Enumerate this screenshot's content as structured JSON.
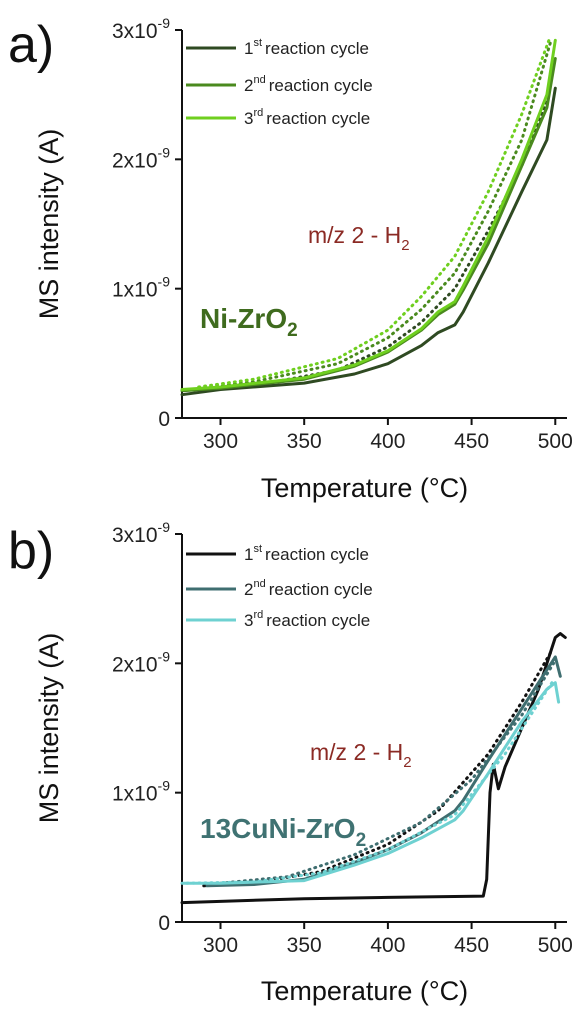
{
  "chart_data": [
    {
      "panel": "a)",
      "type": "line",
      "xlabel": "Temperature (°C)",
      "ylabel": "MS intensity (A)",
      "xlim": [
        277,
        507
      ],
      "ylim": [
        0,
        3e-09
      ],
      "xticks": [
        300,
        350,
        400,
        450,
        500
      ],
      "yticks": [
        {
          "value": 0,
          "label": "0",
          "exp": ""
        },
        {
          "value": 1e-09,
          "label": "1x10",
          "exp": "-9"
        },
        {
          "value": 2e-09,
          "label": "2x10",
          "exp": "-9"
        },
        {
          "value": 3e-09,
          "label": "3x10",
          "exp": "-9"
        }
      ],
      "annotation": {
        "text": "m/z 2 - H",
        "sub": "2"
      },
      "sample_label": {
        "text": "Ni-ZrO",
        "sub": "2",
        "color": "#3f6b1e"
      },
      "legend_position": "top-left",
      "series": [
        {
          "name": "1st reaction cycle",
          "ord": "1",
          "sup": "st",
          "rest": "reaction cycle",
          "color": "#2f4a22",
          "style": "solid",
          "x": [
            277,
            300,
            350,
            380,
            400,
            420,
            430,
            435,
            440,
            445,
            460,
            480,
            495,
            500
          ],
          "y": [
            1.8e-10,
            2.2e-10,
            2.7e-10,
            3.4e-10,
            4.2e-10,
            5.6e-10,
            6.6e-10,
            6.9e-10,
            7.2e-10,
            8.2e-10,
            1.2e-09,
            1.75e-09,
            2.15e-09,
            2.55e-09
          ]
        },
        {
          "name": "1st reaction cycle (cooling)",
          "color": "#2f4a22",
          "style": "dotted",
          "x": [
            287,
            320,
            370,
            400,
            420,
            440,
            460,
            480,
            495
          ],
          "y": [
            2.2e-10,
            2.5e-10,
            3.7e-10,
            5.5e-10,
            7.4e-10,
            1e-09,
            1.45e-09,
            1.95e-09,
            2.45e-09
          ]
        },
        {
          "name": "2nd reaction cycle",
          "ord": "2",
          "sup": "nd",
          "rest": "reaction cycle",
          "color": "#4a8a1e",
          "style": "solid",
          "x": [
            277,
            300,
            350,
            380,
            400,
            420,
            430,
            440,
            445,
            460,
            480,
            495,
            500
          ],
          "y": [
            2.1e-10,
            2.3e-10,
            3e-10,
            4e-10,
            5.1e-10,
            6.8e-10,
            8e-10,
            8.8e-10,
            9.9e-10,
            1.35e-09,
            1.95e-09,
            2.4e-09,
            2.78e-09
          ]
        },
        {
          "name": "2nd reaction cycle (cooling)",
          "color": "#4a8a1e",
          "style": "dotted",
          "x": [
            287,
            320,
            370,
            400,
            420,
            440,
            460,
            480,
            497
          ],
          "y": [
            2.3e-10,
            2.8e-10,
            4.2e-10,
            6.2e-10,
            8.4e-10,
            1.12e-09,
            1.6e-09,
            2.15e-09,
            2.9e-09
          ]
        },
        {
          "name": "3rd reaction cycle",
          "ord": "3",
          "sup": "rd",
          "rest": "reaction cycle",
          "color": "#6fcf1f",
          "style": "solid",
          "x": [
            277,
            300,
            350,
            380,
            400,
            420,
            430,
            440,
            445,
            460,
            480,
            495,
            500
          ],
          "y": [
            2.2e-10,
            2.4e-10,
            3.1e-10,
            4.1e-10,
            5.2e-10,
            6.9e-10,
            8.2e-10,
            9e-10,
            1.02e-09,
            1.4e-09,
            2e-09,
            2.5e-09,
            2.92e-09
          ]
        },
        {
          "name": "3rd reaction cycle (cooling)",
          "color": "#6fcf1f",
          "style": "dotted",
          "x": [
            287,
            320,
            370,
            400,
            420,
            440,
            460,
            480,
            497
          ],
          "y": [
            2.4e-10,
            3e-10,
            4.6e-10,
            6.8e-10,
            9.4e-10,
            1.25e-09,
            1.75e-09,
            2.35e-09,
            2.95e-09
          ]
        }
      ]
    },
    {
      "panel": "b)",
      "type": "line",
      "xlabel": "Temperature (°C)",
      "ylabel": "MS intensity (A)",
      "xlim": [
        277,
        507
      ],
      "ylim": [
        0,
        3e-09
      ],
      "xticks": [
        300,
        350,
        400,
        450,
        500
      ],
      "yticks": [
        {
          "value": 0,
          "label": "0",
          "exp": ""
        },
        {
          "value": 1e-09,
          "label": "1x10",
          "exp": "-9"
        },
        {
          "value": 2e-09,
          "label": "2x10",
          "exp": "-9"
        },
        {
          "value": 3e-09,
          "label": "3x10",
          "exp": "-9"
        }
      ],
      "annotation": {
        "text": "m/z 2 - H",
        "sub": "2"
      },
      "sample_label": {
        "text": "13CuNi-ZrO",
        "sub": "2",
        "color": "#3f7272"
      },
      "legend_position": "top-left",
      "series": [
        {
          "name": "1st reaction cycle",
          "ord": "1",
          "sup": "st",
          "rest": "reaction cycle",
          "color": "#111111",
          "style": "solid",
          "x": [
            277,
            350,
            400,
            457,
            459,
            461,
            463,
            466,
            470,
            480,
            490,
            500,
            503,
            506
          ],
          "y": [
            1.5e-10,
            1.8e-10,
            1.9e-10,
            2e-10,
            3.3e-10,
            1e-09,
            1.22e-09,
            1.03e-09,
            1.2e-09,
            1.5e-09,
            1.8e-09,
            2.2e-09,
            2.23e-09,
            2.2e-09
          ]
        },
        {
          "name": "1st reaction cycle (cooling)",
          "color": "#111111",
          "style": "dotted",
          "x": [
            290,
            320,
            360,
            400,
            430,
            460,
            480,
            498
          ],
          "y": [
            2.8e-10,
            3e-10,
            3.9e-10,
            6e-10,
            8.6e-10,
            1.3e-09,
            1.7e-09,
            2.1e-09
          ]
        },
        {
          "name": "2nd reaction cycle",
          "ord": "2",
          "sup": "nd",
          "rest": "reaction cycle",
          "color": "#3f6e70",
          "style": "solid",
          "x": [
            292,
            320,
            350,
            380,
            400,
            420,
            440,
            445,
            460,
            480,
            495,
            500,
            503
          ],
          "y": [
            2.8e-10,
            2.9e-10,
            3.3e-10,
            4.6e-10,
            5.6e-10,
            6.9e-10,
            8.6e-10,
            9.4e-10,
            1.25e-09,
            1.65e-09,
            1.95e-09,
            2.05e-09,
            1.9e-09
          ]
        },
        {
          "name": "2nd reaction cycle (cooling)",
          "color": "#3f6e70",
          "style": "dotted",
          "x": [
            300,
            340,
            380,
            420,
            450,
            480,
            499
          ],
          "y": [
            3e-10,
            3.5e-10,
            5.2e-10,
            7.7e-10,
            1.1e-09,
            1.6e-09,
            2e-09
          ]
        },
        {
          "name": "3rd reaction cycle",
          "ord": "3",
          "sup": "rd",
          "rest": "reaction cycle",
          "color": "#6ed1d1",
          "style": "solid",
          "x": [
            277,
            300,
            350,
            380,
            400,
            420,
            440,
            445,
            460,
            480,
            495,
            500,
            502
          ],
          "y": [
            3e-10,
            3e-10,
            3.2e-10,
            4.4e-10,
            5.3e-10,
            6.5e-10,
            7.9e-10,
            8.6e-10,
            1.15e-09,
            1.55e-09,
            1.8e-09,
            1.85e-09,
            1.7e-09
          ]
        },
        {
          "name": "3rd reaction cycle (cooling)",
          "color": "#6ed1d1",
          "style": "dotted",
          "x": [
            280,
            320,
            360,
            400,
            440,
            470,
            498
          ],
          "y": [
            3e-10,
            3.1e-10,
            3.8e-10,
            5.6e-10,
            8.3e-10,
            1.3e-09,
            1.85e-09
          ]
        }
      ]
    }
  ]
}
